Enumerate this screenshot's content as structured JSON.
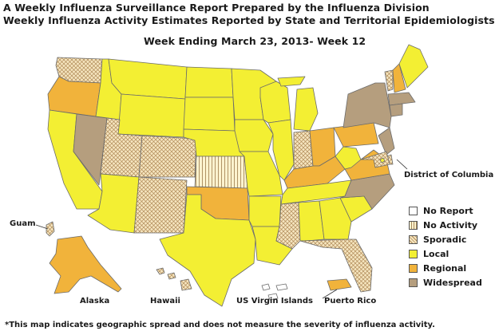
{
  "header": {
    "line1": "A Weekly Influenza Surveillance Report Prepared by the Influenza Division",
    "line2": "Weekly Influenza Activity Estimates Reported by State and Territorial Epidemiologists*",
    "week": "Week Ending March 23, 2013- Week 12"
  },
  "legend": [
    {
      "label": "No Report",
      "pattern": "none"
    },
    {
      "label": "No Activity",
      "pattern": "stripes"
    },
    {
      "label": "Sporadic",
      "pattern": "cross"
    },
    {
      "label": "Local",
      "pattern": "local"
    },
    {
      "label": "Regional",
      "pattern": "regional"
    },
    {
      "label": "Widespread",
      "pattern": "widespread"
    }
  ],
  "colors": {
    "no_report": "#ffffff",
    "no_activity": "#fdf3cf",
    "sporadic": "#f3dfae",
    "local": "#f3ef33",
    "regional": "#f1b33b",
    "widespread": "#b59e7e",
    "border": "#6b6b6b"
  },
  "labels": {
    "dc": "District of Columbia",
    "guam": "Guam",
    "alaska": "Alaska",
    "hawaii": "Hawaii",
    "usvi": "US Virgin Islands",
    "pr": "Puerto Rico"
  },
  "activity": {
    "WA": "sporadic",
    "OR": "regional",
    "CA": "local",
    "NV": "widespread",
    "ID": "local",
    "MT": "local",
    "WY": "local",
    "UT": "sporadic",
    "AZ": "local",
    "CO": "sporadic",
    "NM": "sporadic",
    "ND": "local",
    "SD": "local",
    "NE": "local",
    "KS": "no_activity",
    "OK": "regional",
    "TX": "local",
    "MN": "local",
    "IA": "local",
    "MO": "local",
    "AR": "local",
    "LA": "local",
    "WI": "local",
    "IL": "local",
    "MI": "local",
    "IN": "sporadic",
    "OH": "regional",
    "KY": "regional",
    "TN": "local",
    "MS": "sporadic",
    "AL": "local",
    "GA": "local",
    "FL": "sporadic",
    "SC": "local",
    "NC": "widespread",
    "VA": "regional",
    "WV": "local",
    "PA": "regional",
    "NY": "widespread",
    "VT": "sporadic",
    "NH": "regional",
    "ME": "local",
    "MA": "widespread",
    "CT": "widespread",
    "NJ": "widespread",
    "DE": "sporadic",
    "MD": "sporadic",
    "DC": "local",
    "AK": "regional",
    "HI": "sporadic",
    "GU": "sporadic",
    "PR": "regional",
    "VI": "no_report"
  },
  "footnote": "*This map indicates geographic spread and does not measure the severity of influenza activity."
}
